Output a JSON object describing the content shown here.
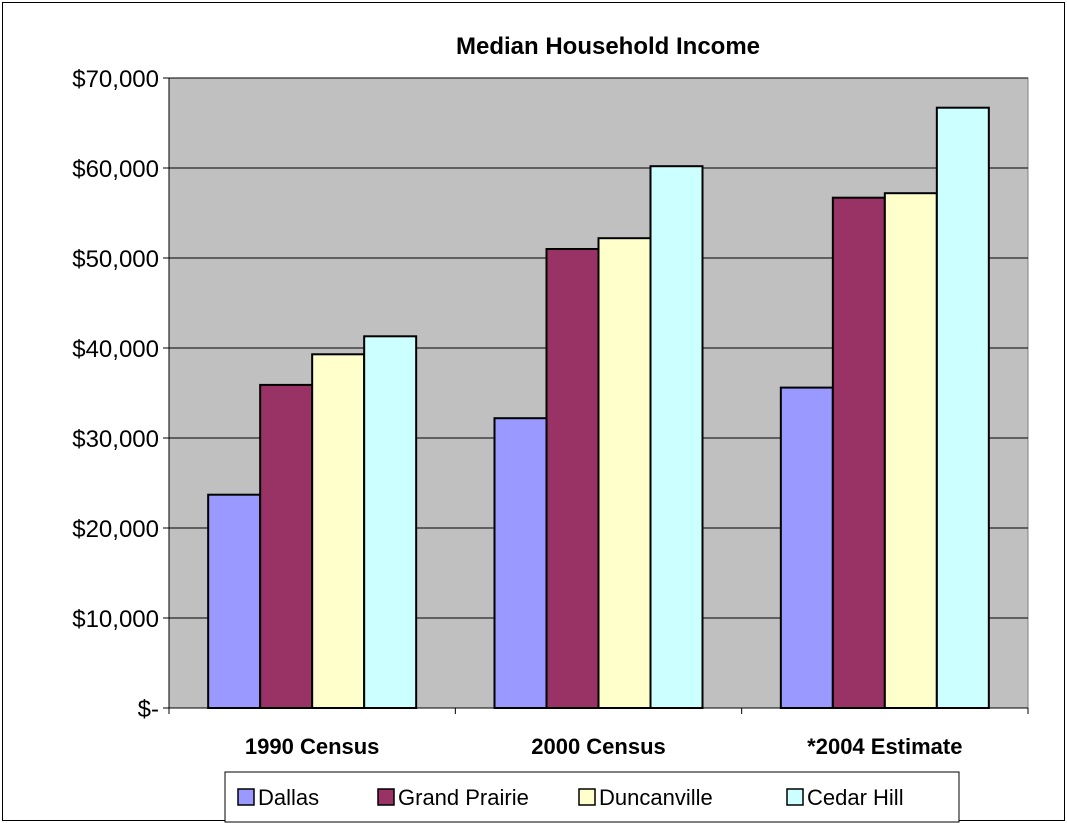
{
  "chart_data": {
    "type": "bar",
    "title": "Median Household Income",
    "xlabel": "",
    "ylabel": "",
    "categories": [
      "1990 Census",
      "2000 Census",
      "*2004 Estimate"
    ],
    "series": [
      {
        "name": "Dallas",
        "values": [
          23700,
          32200,
          35600
        ],
        "color": "#9999ff"
      },
      {
        "name": "Grand Prairie",
        "values": [
          35900,
          51000,
          56700
        ],
        "color": "#993366"
      },
      {
        "name": "Duncanville",
        "values": [
          39300,
          52200,
          57200
        ],
        "color": "#ffffcc"
      },
      {
        "name": "Cedar Hill",
        "values": [
          41300,
          60200,
          66700
        ],
        "color": "#ccffff"
      }
    ],
    "ylim": [
      0,
      70000
    ],
    "yticks": [
      0,
      10000,
      20000,
      30000,
      40000,
      50000,
      60000,
      70000
    ],
    "ytick_labels": [
      "$-",
      "$10,000",
      "$20,000",
      "$30,000",
      "$40,000",
      "$50,000",
      "$60,000",
      "$70,000"
    ],
    "grid": true,
    "plot_background": "#c0c0c0",
    "legend_position": "bottom"
  }
}
